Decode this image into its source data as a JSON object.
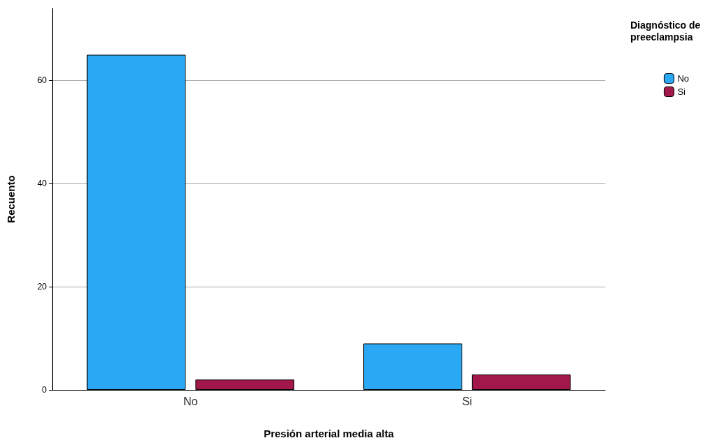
{
  "chart_data": {
    "type": "bar",
    "xlabel": "Presión arterial media alta",
    "ylabel": "Recuento",
    "legend_title": "Diagnóstico de preeclampsia",
    "categories": [
      "No",
      "Si"
    ],
    "series": [
      {
        "name": "No",
        "color": "#2aa8f4",
        "values": [
          65,
          9
        ]
      },
      {
        "name": "Si",
        "color": "#a2184b",
        "values": [
          2,
          3
        ]
      }
    ],
    "ylim": [
      0,
      74
    ],
    "yticks": [
      0,
      20,
      40,
      60
    ],
    "grid": "y",
    "legend": "top right"
  }
}
